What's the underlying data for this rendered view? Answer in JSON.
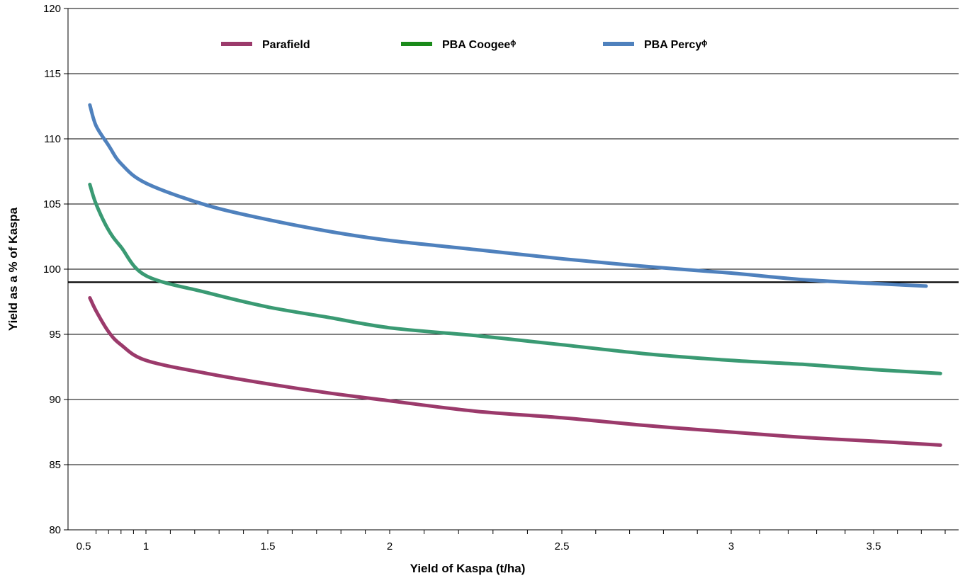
{
  "chart_data": {
    "type": "line",
    "title": "",
    "xlabel": "Yield of Kaspa (t/ha)",
    "ylabel": "Yield as a % of Kaspa",
    "xlim": [
      0.5,
      3.8
    ],
    "ylim": [
      80,
      120
    ],
    "x_ticks": [
      0.5,
      1,
      1.5,
      2,
      2.5,
      3,
      3.5
    ],
    "x_tick_labels": [
      "0.5",
      "1",
      "1.5",
      "2",
      "2.5",
      "3",
      "3.5"
    ],
    "y_ticks": [
      80,
      85,
      90,
      95,
      100,
      105,
      110,
      115,
      120
    ],
    "y_tick_labels": [
      "80",
      "85",
      "90",
      "95",
      "100",
      "105",
      "110",
      "115",
      "120"
    ],
    "grid": "horizontal",
    "legend_position": "top",
    "reference_line": {
      "y": 99
    },
    "series": [
      {
        "name": "Parafield",
        "color": "#9b3a6b",
        "points": [
          [
            0.55,
            97.8
          ],
          [
            0.6,
            96.8
          ],
          [
            0.7,
            95.2
          ],
          [
            0.8,
            94.2
          ],
          [
            1.0,
            93.0
          ],
          [
            1.25,
            92.0
          ],
          [
            1.5,
            91.2
          ],
          [
            1.75,
            90.5
          ],
          [
            2.0,
            89.9
          ],
          [
            2.25,
            89.1
          ],
          [
            2.5,
            88.6
          ],
          [
            2.75,
            88.0
          ],
          [
            3.0,
            87.5
          ],
          [
            3.25,
            87.1
          ],
          [
            3.5,
            86.8
          ],
          [
            3.78,
            86.5
          ]
        ]
      },
      {
        "name": "PBA Coogeeᶲ",
        "color": "#3a9a73",
        "points": [
          [
            0.55,
            106.5
          ],
          [
            0.6,
            105.0
          ],
          [
            0.7,
            103.0
          ],
          [
            0.8,
            101.7
          ],
          [
            1.0,
            99.5
          ],
          [
            1.25,
            98.2
          ],
          [
            1.5,
            97.1
          ],
          [
            1.75,
            96.3
          ],
          [
            2.0,
            95.5
          ],
          [
            2.25,
            94.9
          ],
          [
            2.5,
            94.2
          ],
          [
            2.75,
            93.5
          ],
          [
            3.0,
            93.0
          ],
          [
            3.25,
            92.7
          ],
          [
            3.5,
            92.3
          ],
          [
            3.78,
            92.0
          ]
        ]
      },
      {
        "name": "PBA Percyᶲ",
        "color": "#4f81bd",
        "points": [
          [
            0.55,
            112.6
          ],
          [
            0.6,
            111.0
          ],
          [
            0.7,
            109.5
          ],
          [
            0.8,
            108.1
          ],
          [
            1.0,
            106.6
          ],
          [
            1.25,
            104.9
          ],
          [
            1.5,
            103.8
          ],
          [
            1.75,
            102.9
          ],
          [
            2.0,
            102.2
          ],
          [
            2.25,
            101.5
          ],
          [
            2.5,
            100.8
          ],
          [
            2.75,
            100.2
          ],
          [
            3.0,
            99.7
          ],
          [
            3.25,
            99.2
          ],
          [
            3.5,
            98.9
          ],
          [
            3.72,
            98.7
          ]
        ]
      }
    ],
    "legend": [
      {
        "label": "Parafield",
        "color": "#9b3a6b"
      },
      {
        "label": "PBA Coogeeᶲ",
        "color": "#1a8a1a"
      },
      {
        "label": "PBA Percyᶲ",
        "color": "#4f81bd"
      }
    ]
  }
}
